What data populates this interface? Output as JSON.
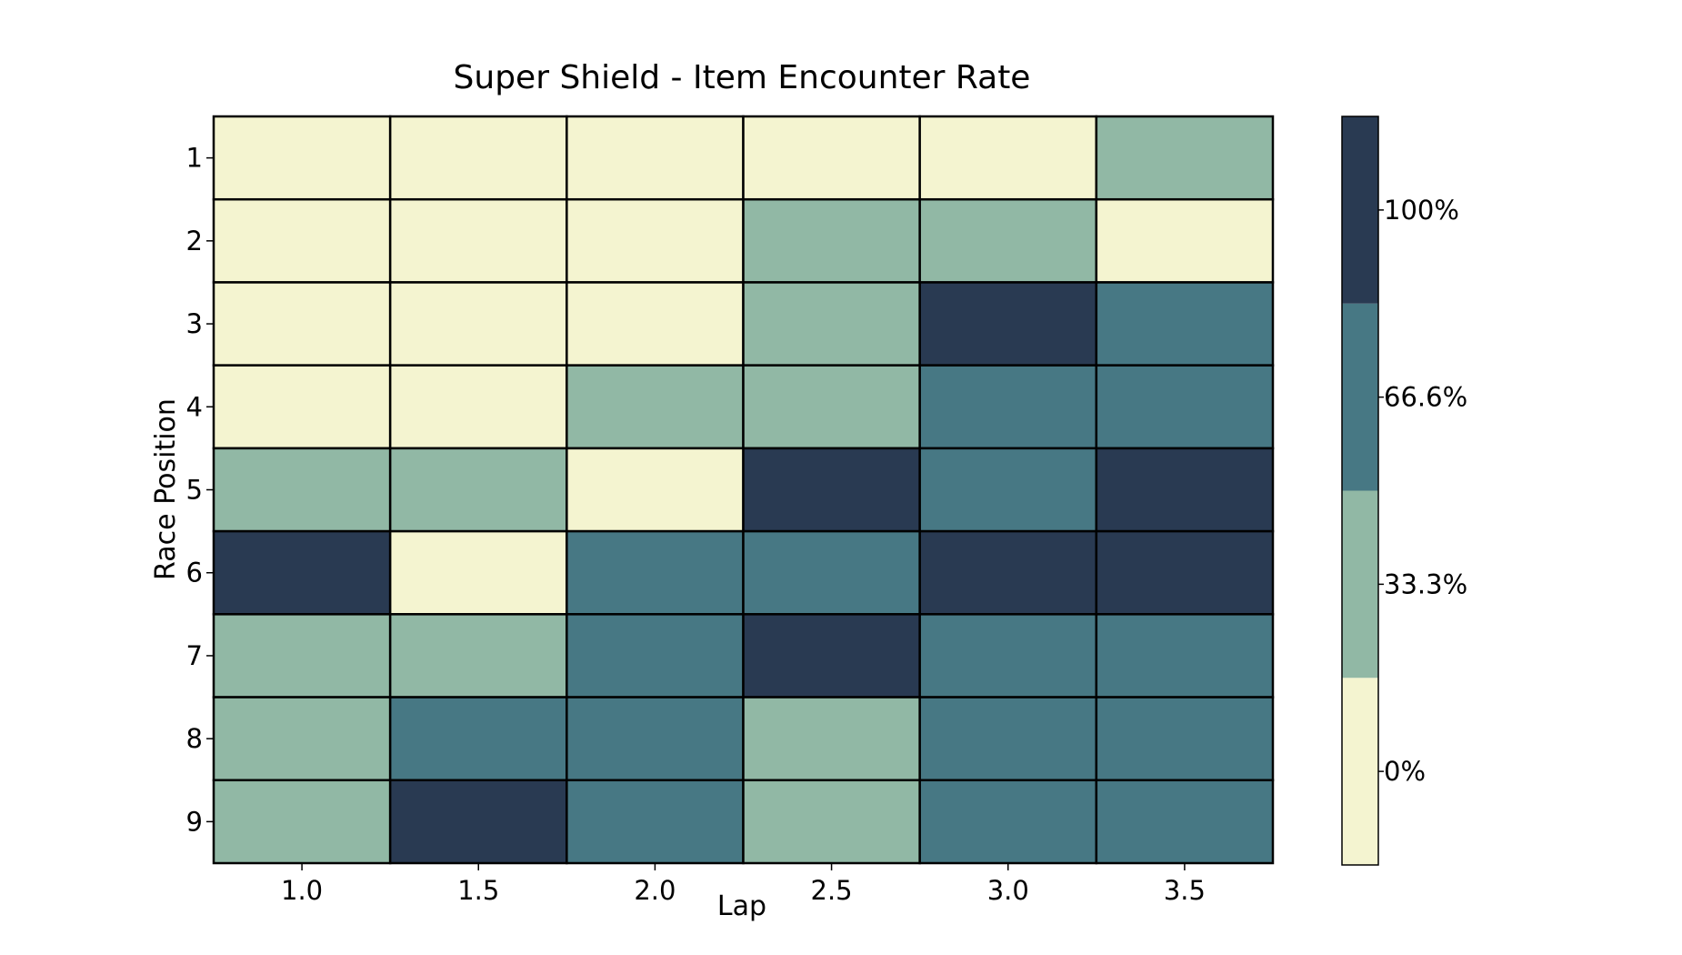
{
  "chart_data": {
    "type": "heatmap",
    "title": "Super Shield - Item Encounter Rate",
    "xlabel": "Lap",
    "ylabel": "Race Position",
    "x": [
      "1.0",
      "1.5",
      "2.0",
      "2.5",
      "3.0",
      "3.5"
    ],
    "y": [
      "1",
      "2",
      "3",
      "4",
      "5",
      "6",
      "7",
      "8",
      "9"
    ],
    "values": [
      [
        0,
        0,
        0,
        0,
        0,
        33.3
      ],
      [
        0,
        0,
        0,
        33.3,
        33.3,
        0
      ],
      [
        0,
        0,
        0,
        33.3,
        100,
        66.6
      ],
      [
        0,
        0,
        33.3,
        33.3,
        66.6,
        66.6
      ],
      [
        33.3,
        33.3,
        0,
        100,
        66.6,
        100
      ],
      [
        100,
        0,
        66.6,
        66.6,
        100,
        100
      ],
      [
        33.3,
        33.3,
        66.6,
        100,
        66.6,
        66.6
      ],
      [
        33.3,
        66.6,
        66.6,
        33.3,
        66.6,
        66.6
      ],
      [
        33.3,
        100,
        66.6,
        33.3,
        66.6,
        66.6
      ]
    ],
    "colorbar": {
      "levels": [
        0,
        33.3,
        66.6,
        100
      ],
      "labels": [
        "0%",
        "33.3%",
        "66.6%",
        "100%"
      ],
      "colors": [
        "#f4f4d0",
        "#91b8a5",
        "#477884",
        "#293a52"
      ]
    },
    "grid": false,
    "cell_border_color": "#000000"
  }
}
